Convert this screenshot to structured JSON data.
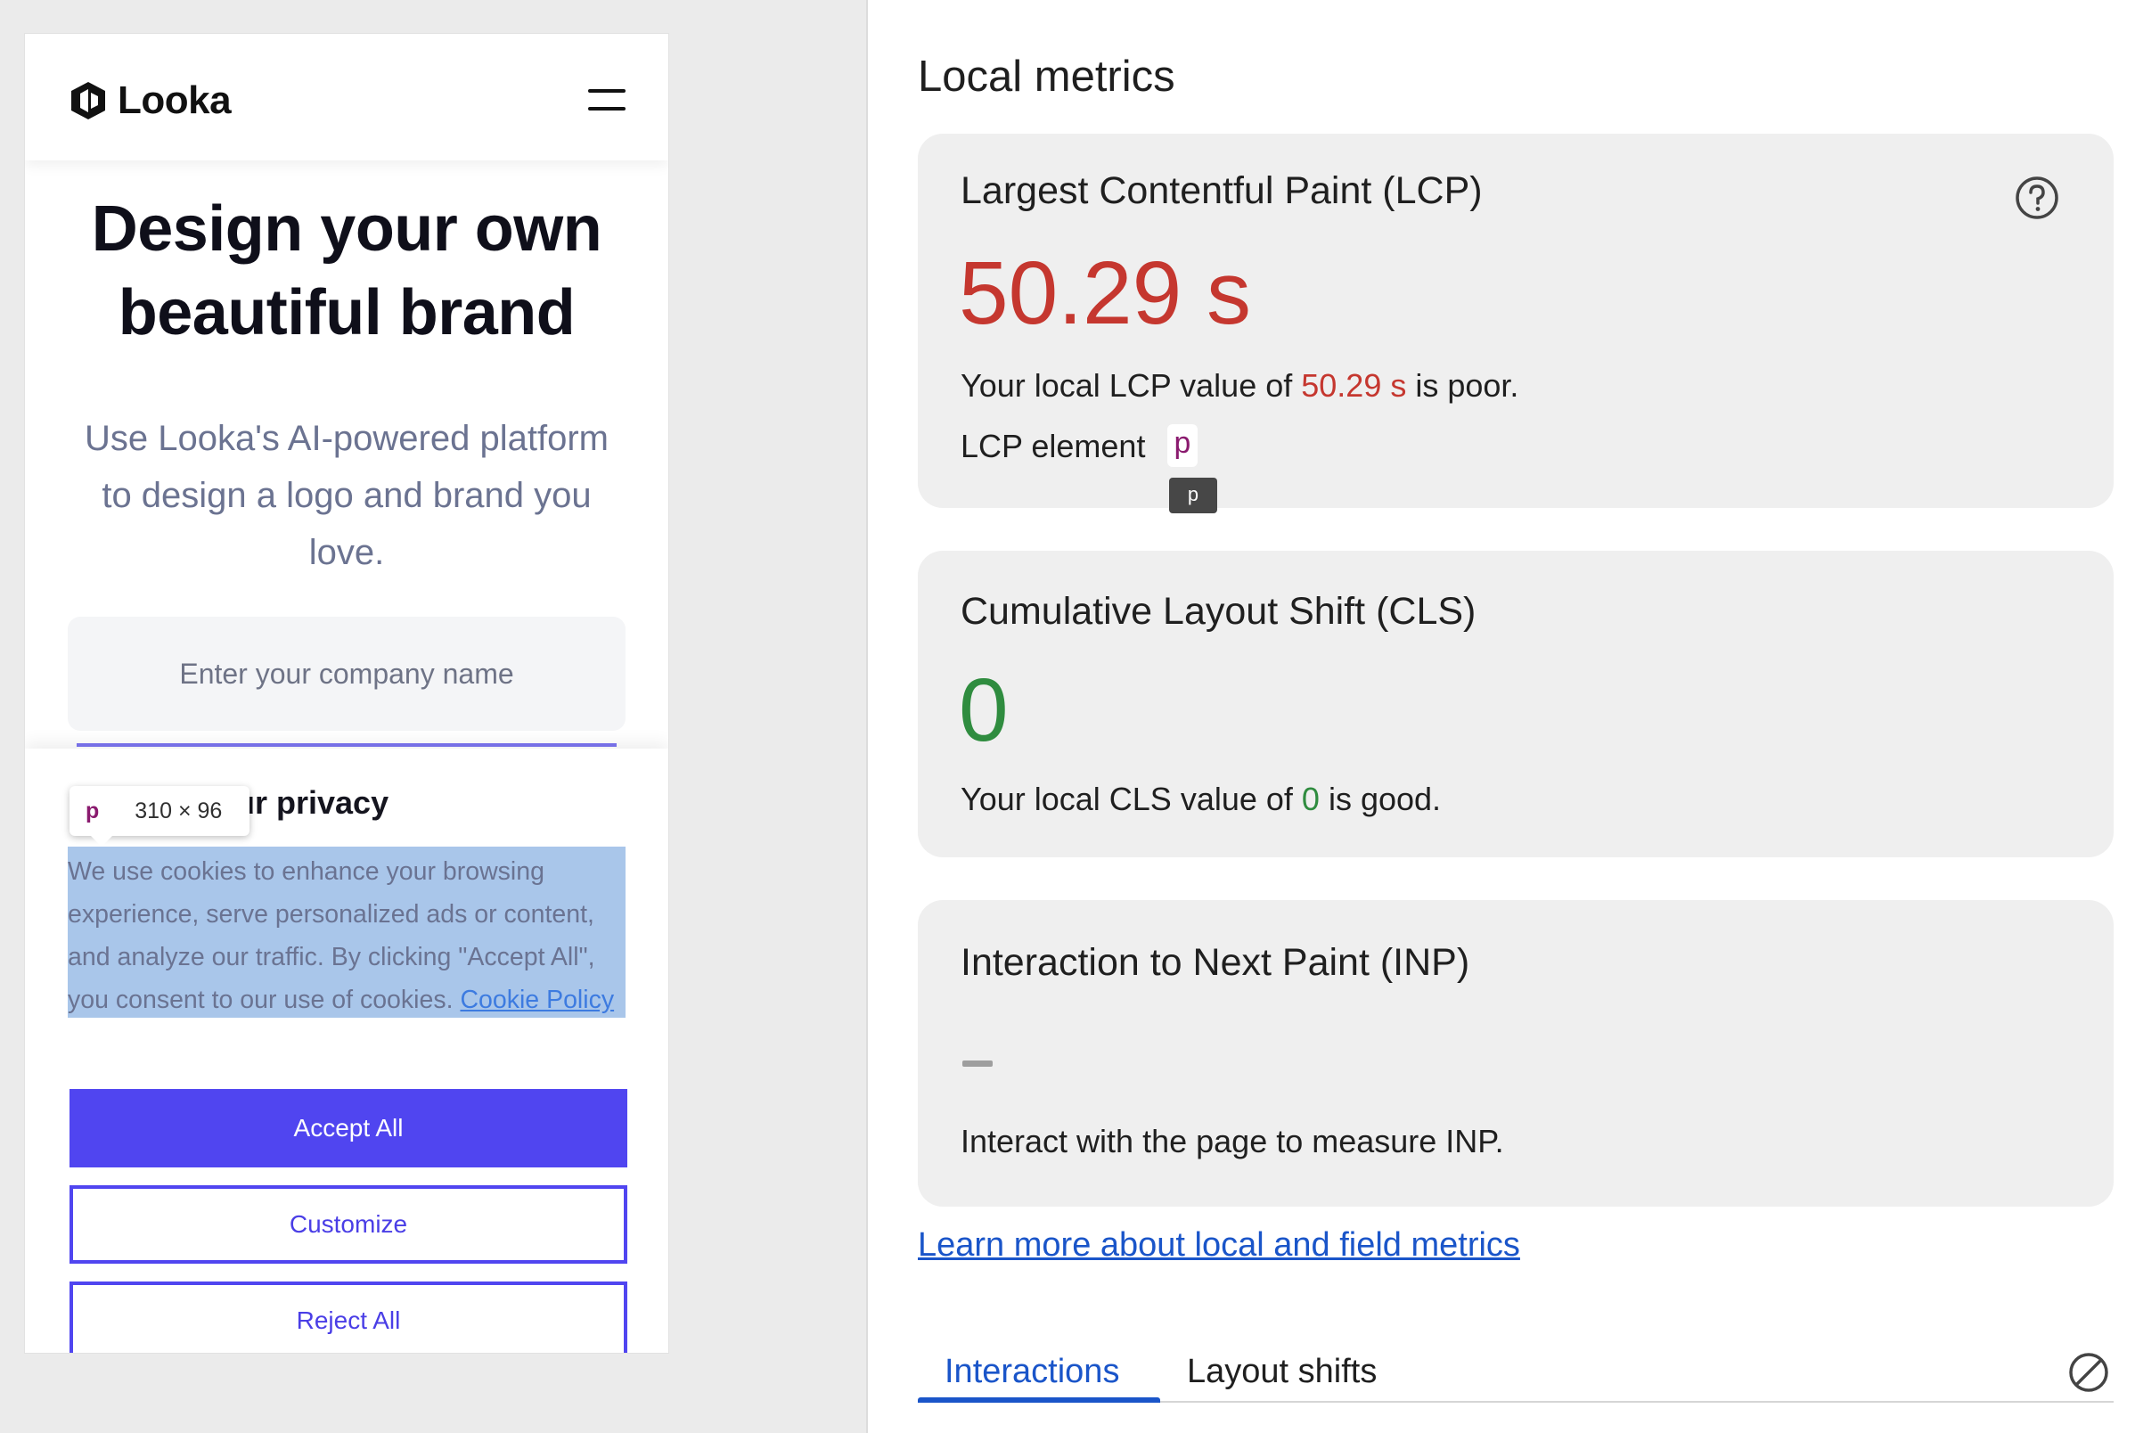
{
  "preview": {
    "brand_name": "Looka",
    "hero_title": "Design your own beautiful brand",
    "hero_subtitle": "Use Looka's AI-powered platform to design a logo and brand you love.",
    "company_input_placeholder": "Enter your company name",
    "cookie_banner": {
      "title_visible": "ur privacy",
      "text": "We use cookies to enhance your browsing experience, serve personalized ads or content, and analyze our traffic. By clicking \"Accept All\", you consent to our use of cookies.",
      "policy_link": "Cookie Policy",
      "accept_label": "Accept All",
      "customize_label": "Customize",
      "reject_label": "Reject All"
    },
    "inspect_tooltip": {
      "tag": "p",
      "size": "310 × 96"
    }
  },
  "metrics": {
    "heading": "Local metrics",
    "lcp": {
      "title": "Largest Contentful Paint (LCP)",
      "value": "50.29 s",
      "desc_prefix": "Your local LCP value of ",
      "desc_value": "50.29 s",
      "desc_suffix": " is poor.",
      "element_label": "LCP element",
      "element_tag": "p",
      "element_tooltip": "p",
      "status_color": "#c5372f"
    },
    "cls": {
      "title": "Cumulative Layout Shift (CLS)",
      "value": "0",
      "desc_prefix": "Your local CLS value of ",
      "desc_value": "0",
      "desc_suffix": " is good.",
      "status_color": "#2f8c3f"
    },
    "inp": {
      "title": "Interaction to Next Paint (INP)",
      "desc": "Interact with the page to measure INP."
    },
    "learn_more": "Learn more about local and field metrics",
    "tabs": [
      "Interactions",
      "Layout shifts"
    ],
    "active_tab": "Interactions"
  },
  "icons": {
    "help": "help-circle-icon",
    "clear": "clear-block-icon",
    "menu": "hamburger-menu-icon",
    "logo": "looka-logo-icon"
  },
  "colors": {
    "accent_purple": "#5045f0",
    "link_blue": "#1a55c9",
    "poor_red": "#c5372f",
    "good_green": "#2f8c3f"
  }
}
